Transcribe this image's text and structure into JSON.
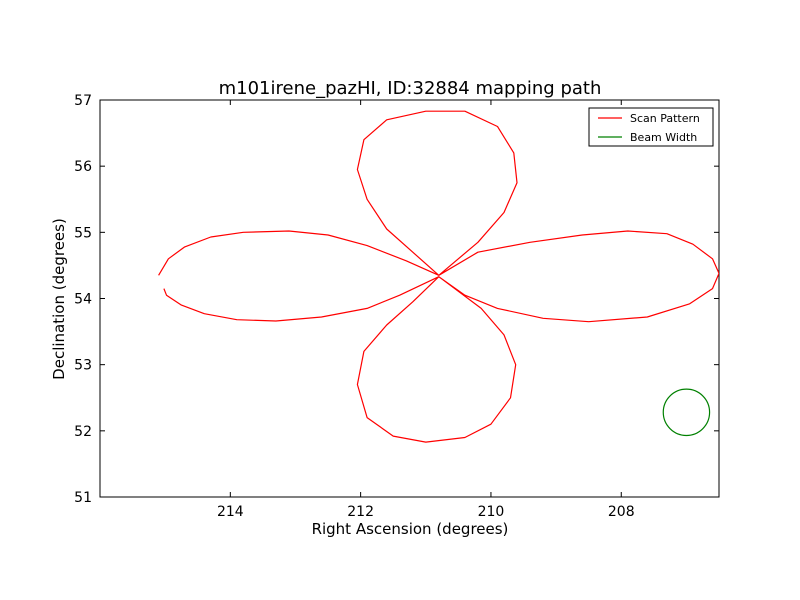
{
  "chart_data": {
    "type": "line",
    "title": "m101irene_pazHI, ID:32884 mapping path",
    "xlabel": "Right Ascension (degrees)",
    "ylabel": "Declination (degrees)",
    "xlim": [
      216.0,
      206.5
    ],
    "ylim": [
      51,
      57
    ],
    "xticks": [
      214,
      212,
      210,
      208
    ],
    "yticks": [
      51,
      52,
      53,
      54,
      55,
      56,
      57
    ],
    "x_tick_labels": [
      "214",
      "212",
      "210",
      "208"
    ],
    "y_tick_labels": [
      "51",
      "52",
      "53",
      "54",
      "55",
      "56",
      "57"
    ],
    "grid": false,
    "legend_position": "top-right",
    "series": [
      {
        "name": "Scan Pattern",
        "color": "#ff0000",
        "points": [
          [
            215.1,
            54.35
          ],
          [
            214.95,
            54.6
          ],
          [
            214.7,
            54.78
          ],
          [
            214.3,
            54.93
          ],
          [
            213.8,
            55.0
          ],
          [
            213.1,
            55.02
          ],
          [
            212.5,
            54.96
          ],
          [
            211.9,
            54.8
          ],
          [
            211.3,
            54.57
          ],
          [
            210.8,
            54.35
          ],
          [
            211.2,
            54.7
          ],
          [
            211.6,
            55.05
          ],
          [
            211.9,
            55.5
          ],
          [
            212.05,
            55.95
          ],
          [
            211.95,
            56.4
          ],
          [
            211.6,
            56.7
          ],
          [
            211.0,
            56.83
          ],
          [
            210.4,
            56.83
          ],
          [
            209.9,
            56.6
          ],
          [
            209.65,
            56.2
          ],
          [
            209.6,
            55.75
          ],
          [
            209.8,
            55.3
          ],
          [
            210.2,
            54.85
          ],
          [
            210.8,
            54.35
          ],
          [
            210.2,
            54.7
          ],
          [
            209.4,
            54.85
          ],
          [
            208.6,
            54.96
          ],
          [
            207.9,
            55.02
          ],
          [
            207.3,
            54.98
          ],
          [
            206.9,
            54.82
          ],
          [
            206.6,
            54.6
          ],
          [
            206.5,
            54.38
          ],
          [
            206.6,
            54.15
          ],
          [
            206.95,
            53.92
          ],
          [
            207.6,
            53.72
          ],
          [
            208.5,
            53.65
          ],
          [
            209.2,
            53.7
          ],
          [
            209.9,
            53.85
          ],
          [
            210.4,
            54.05
          ],
          [
            210.8,
            54.33
          ],
          [
            210.15,
            53.85
          ],
          [
            209.8,
            53.45
          ],
          [
            209.62,
            53.0
          ],
          [
            209.7,
            52.5
          ],
          [
            210.0,
            52.1
          ],
          [
            210.4,
            51.9
          ],
          [
            211.0,
            51.83
          ],
          [
            211.5,
            51.92
          ],
          [
            211.9,
            52.2
          ],
          [
            212.05,
            52.7
          ],
          [
            211.95,
            53.2
          ],
          [
            211.6,
            53.6
          ],
          [
            211.2,
            53.95
          ],
          [
            210.8,
            54.33
          ],
          [
            211.4,
            54.05
          ],
          [
            211.9,
            53.85
          ],
          [
            212.6,
            53.72
          ],
          [
            213.3,
            53.66
          ],
          [
            213.9,
            53.68
          ],
          [
            214.4,
            53.77
          ],
          [
            214.75,
            53.9
          ],
          [
            214.98,
            54.05
          ],
          [
            215.02,
            54.15
          ]
        ]
      },
      {
        "name": "Beam Width",
        "color": "#008000",
        "center": [
          207.0,
          52.28
        ],
        "radius_deg": 0.35
      }
    ]
  }
}
